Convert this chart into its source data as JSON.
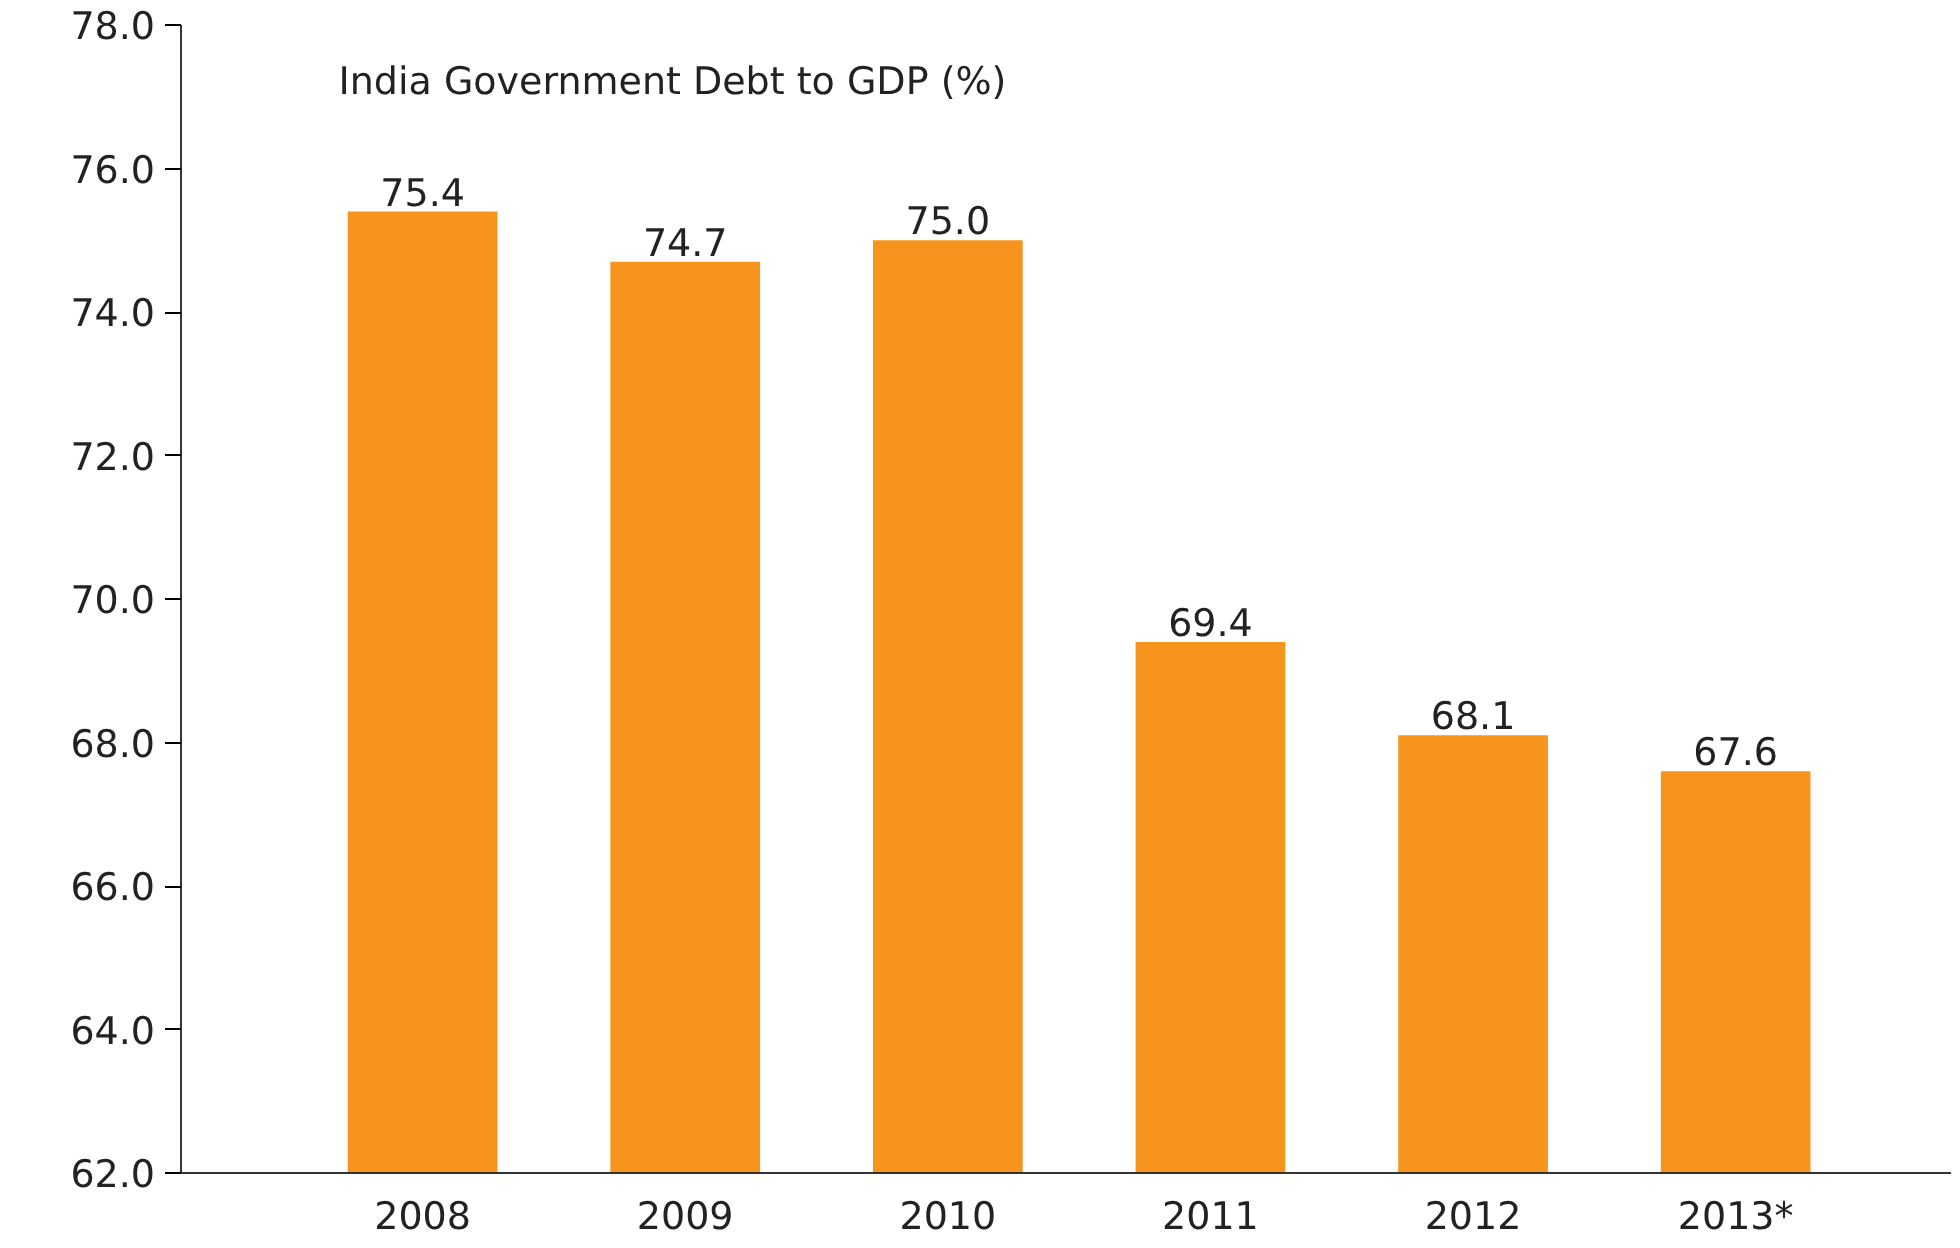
{
  "chart_data": {
    "type": "bar",
    "title": "India Government Debt to GDP (%)",
    "categories": [
      "2008",
      "2009",
      "2010",
      "2011",
      "2012",
      "2013*"
    ],
    "values": [
      75.4,
      74.7,
      75.0,
      69.4,
      68.1,
      67.6
    ],
    "value_labels": [
      "75.4",
      "74.7",
      "75.0",
      "69.4",
      "68.1",
      "67.6"
    ],
    "color": "#f7941d",
    "ylim": [
      62,
      78
    ],
    "yticks": [
      {
        "value": 62,
        "label": "62.0"
      },
      {
        "value": 64,
        "label": "64.0"
      },
      {
        "value": 66,
        "label": "66.0"
      },
      {
        "value": 68,
        "label": "68.0"
      },
      {
        "value": 70,
        "label": "70.0"
      },
      {
        "value": 72,
        "label": "72.0"
      },
      {
        "value": 74,
        "label": "74.0"
      },
      {
        "value": 76,
        "label": "76.0"
      },
      {
        "value": 78,
        "label": "78.0"
      }
    ],
    "grid": false
  }
}
